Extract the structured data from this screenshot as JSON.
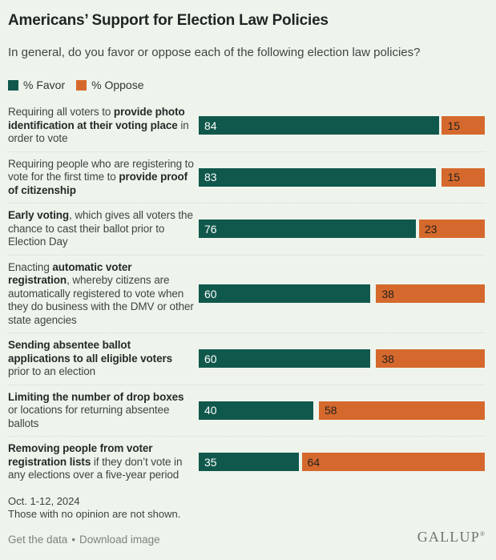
{
  "header": {
    "title": "Americans’ Support for Election Law Policies",
    "subtitle": "In general, do you favor or oppose each of the following election law policies?"
  },
  "legend": {
    "favor_label": "% Favor",
    "oppose_label": "% Oppose"
  },
  "colors": {
    "favor": "#10584C",
    "oppose": "#D5692D",
    "background": "#EEF4EC",
    "favor_value_text": "#FFFFFF",
    "oppose_value_text": "#26221E"
  },
  "chart_data": {
    "type": "bar",
    "orientation": "horizontal",
    "title": "Americans’ Support for Election Law Policies",
    "subtitle": "In general, do you favor or oppose each of the following election law policies?",
    "xlim": [
      0,
      100
    ],
    "legend_position": "top",
    "value_labels": "inside-start",
    "oppose_bars_right_aligned": true,
    "grid": false,
    "categories": [
      "Requiring all voters to provide photo identification at their voting place in order to vote",
      "Requiring people who are registering to vote for the first time to provide proof of citizenship",
      "Early voting, which gives all voters the chance to cast their ballot prior to Election Day",
      "Enacting automatic voter registration, whereby citizens are automatically registered to vote when they do business with the DMV or other state agencies",
      "Sending absentee ballot applications to all eligible voters prior to an election",
      "Limiting the number of drop boxes or locations for returning absentee ballots",
      "Removing people from voter registration lists if they don’t vote in any elections over a five-year period"
    ],
    "series": [
      {
        "name": "% Favor",
        "color": "#10584C",
        "values": [
          84,
          83,
          76,
          60,
          60,
          40,
          35
        ]
      },
      {
        "name": "% Oppose",
        "color": "#D5692D",
        "values": [
          15,
          15,
          23,
          38,
          38,
          58,
          64
        ]
      }
    ],
    "rows": [
      {
        "favor": 84,
        "oppose": 15,
        "segments": [
          {
            "t": "Requiring all voters to ",
            "b": false
          },
          {
            "t": "provide photo identification at their voting place",
            "b": true
          },
          {
            "t": " in order to vote",
            "b": false
          }
        ]
      },
      {
        "favor": 83,
        "oppose": 15,
        "segments": [
          {
            "t": "Requiring people who are registering to vote for the first time to ",
            "b": false
          },
          {
            "t": "provide proof of citizenship",
            "b": true
          }
        ]
      },
      {
        "favor": 76,
        "oppose": 23,
        "segments": [
          {
            "t": "Early voting",
            "b": true
          },
          {
            "t": ", which gives all voters the chance to cast their ballot prior to Election Day",
            "b": false
          }
        ]
      },
      {
        "favor": 60,
        "oppose": 38,
        "segments": [
          {
            "t": "Enacting ",
            "b": false
          },
          {
            "t": "automatic voter registration",
            "b": true
          },
          {
            "t": ", whereby citizens are automatically registered to vote when they do business with the DMV or other state agencies",
            "b": false
          }
        ]
      },
      {
        "favor": 60,
        "oppose": 38,
        "segments": [
          {
            "t": "Sending absentee ballot applications to all eligible voters",
            "b": true
          },
          {
            "t": " prior to an election",
            "b": false
          }
        ]
      },
      {
        "favor": 40,
        "oppose": 58,
        "segments": [
          {
            "t": "Limiting the number of drop boxes",
            "b": true
          },
          {
            "t": " or locations for returning absentee ballots",
            "b": false
          }
        ]
      },
      {
        "favor": 35,
        "oppose": 64,
        "segments": [
          {
            "t": "Removing people from voter registration lists",
            "b": true
          },
          {
            "t": " if they don’t vote in any elections over a five-year period",
            "b": false
          }
        ]
      }
    ],
    "notes": [
      "Oct. 1-12, 2024",
      "Those with no opinion are not shown."
    ]
  },
  "notes": {
    "date": "Oct. 1-12, 2024",
    "no_opinion": "Those with no opinion are not shown."
  },
  "footer": {
    "get_data_label": "Get the data",
    "separator": "•",
    "download_label": "Download image",
    "logo": "GALLUP",
    "registered_mark": "®"
  }
}
